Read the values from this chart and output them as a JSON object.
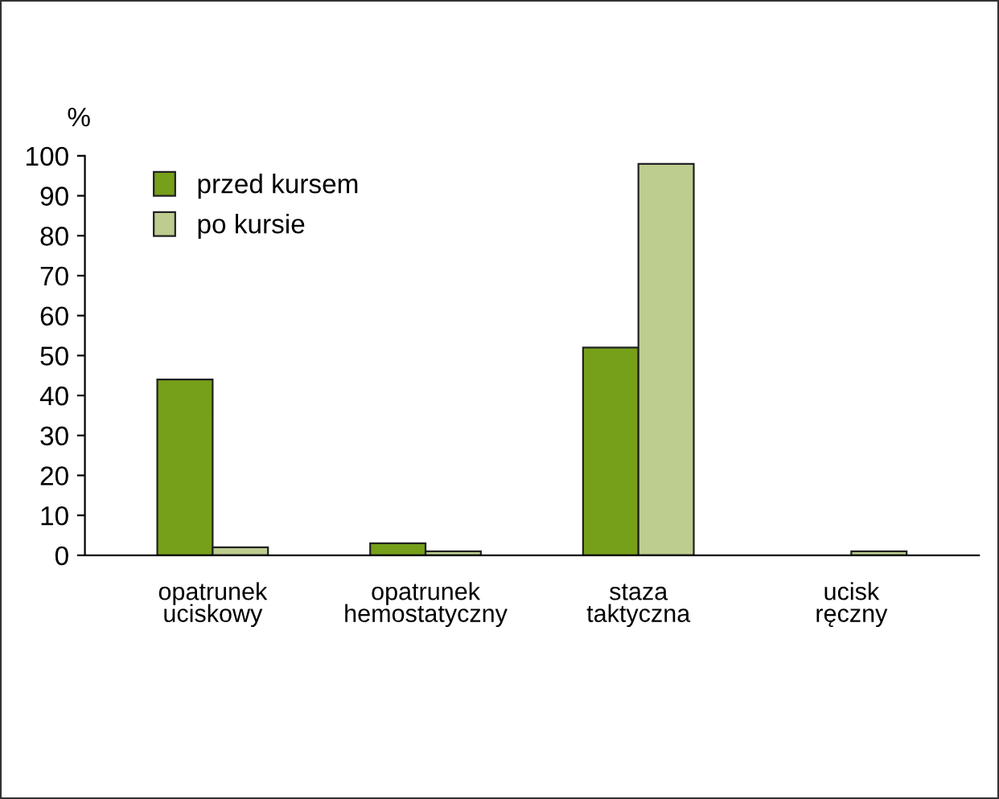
{
  "chart_data": {
    "type": "bar",
    "ylabel": "%",
    "categories": [
      "opatrunek\nuciskowy",
      "opatrunek\nhemostatyczny",
      "staza\ntaktyczna",
      "ucisk\nręczny"
    ],
    "series": [
      {
        "name": "przed kursem",
        "color": "#76a01a",
        "values": [
          44,
          3,
          52,
          null
        ]
      },
      {
        "name": "po kursie",
        "color": "#bccd8f",
        "values": [
          2,
          1,
          98,
          1
        ]
      }
    ],
    "ylim": [
      0,
      100
    ],
    "yticks": [
      0,
      10,
      20,
      30,
      40,
      50,
      60,
      70,
      80,
      90,
      100
    ],
    "grid": false,
    "legend": "top left"
  }
}
